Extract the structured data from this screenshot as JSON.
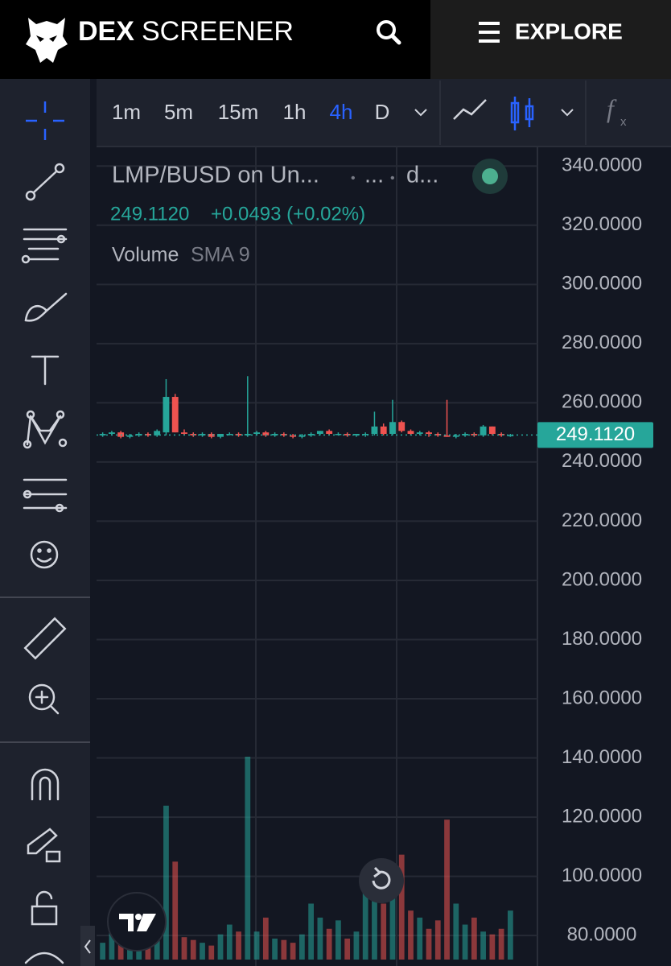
{
  "header": {
    "brand_bold": "DEX",
    "brand_light": "SCREENER",
    "explore": "EXPLORE"
  },
  "toolbar": {
    "intervals": [
      "1m",
      "5m",
      "15m",
      "1h",
      "4h",
      "D"
    ],
    "active_interval": 4
  },
  "legend": {
    "symbol": "LMP/BUSD on Un...",
    "exchange": "...",
    "source": "d...",
    "price": "249.1120",
    "change": "+0.0493 (+0.02%)",
    "indicator": "Volume",
    "indicator_args": "SMA 9"
  },
  "chart_data": {
    "type": "candlestick",
    "up_color": "#26a69a",
    "down_color": "#ef5350",
    "open": [
      249,
      249.5,
      250,
      248.5,
      249,
      249.5,
      249,
      250,
      262,
      250,
      249.5,
      249,
      249.5,
      248.5,
      249.5,
      249.5,
      249,
      249.5,
      250,
      249,
      249.5,
      249,
      248.5,
      249,
      249.5,
      250.5,
      249.5,
      249.5,
      249,
      249.5,
      249.5,
      252,
      249.5,
      253.5,
      250.5,
      249.5,
      250,
      249.5,
      249,
      248.5,
      249,
      249.5,
      249,
      252,
      249.5,
      249
    ],
    "high": [
      250,
      250.5,
      250.5,
      249.5,
      250,
      250,
      251,
      268,
      263,
      251,
      250,
      250,
      250,
      249.5,
      250,
      250,
      269,
      250.5,
      250.5,
      250,
      250,
      249.5,
      249.5,
      250,
      250.5,
      251,
      250,
      250,
      249.5,
      250,
      257,
      253,
      261,
      254,
      251,
      250.5,
      250.5,
      250,
      261,
      249.5,
      250,
      250,
      252.5,
      252,
      250,
      249.5
    ],
    "low": [
      248.5,
      249,
      248,
      248,
      248.5,
      248.5,
      248.5,
      249,
      250,
      249,
      248.5,
      248.5,
      248,
      248,
      249,
      248.5,
      248.5,
      249,
      248.5,
      248.5,
      248.5,
      248,
      248,
      248.5,
      249,
      249,
      249,
      248.5,
      248.5,
      248.5,
      249,
      249,
      249,
      250,
      249,
      249,
      248.5,
      248.5,
      248.5,
      248,
      248.5,
      248.5,
      248.5,
      249,
      248.5,
      248.5
    ],
    "close": [
      249.5,
      250,
      248.5,
      249,
      249.5,
      249,
      250.5,
      262,
      250,
      249.5,
      249,
      249.5,
      248.5,
      249.5,
      249.5,
      249,
      249.5,
      250,
      249,
      249.5,
      249,
      248.5,
      249,
      249.5,
      250.5,
      249.5,
      249.5,
      249,
      249.5,
      249.5,
      252,
      249.5,
      253.5,
      250.5,
      249.5,
      250,
      249.5,
      249,
      248.5,
      249,
      249.5,
      249,
      252,
      249.5,
      249,
      249.112
    ],
    "volume": [
      12,
      30,
      25,
      20,
      18,
      15,
      22,
      110,
      70,
      16,
      14,
      12,
      10,
      18,
      25,
      20,
      145,
      20,
      30,
      15,
      14,
      12,
      18,
      40,
      30,
      22,
      28,
      15,
      20,
      65,
      45,
      40,
      55,
      75,
      35,
      30,
      22,
      28,
      100,
      40,
      25,
      30,
      20,
      18,
      22,
      35
    ],
    "ylim": [
      69.7,
      346.6
    ],
    "yticks": [
      {
        "value": 340,
        "label": "340.0000"
      },
      {
        "value": 320,
        "label": "320.0000"
      },
      {
        "value": 300,
        "label": "300.0000"
      },
      {
        "value": 280,
        "label": "280.0000"
      },
      {
        "value": 260,
        "label": "260.0000"
      },
      {
        "value": 240,
        "label": "240.0000"
      },
      {
        "value": 220,
        "label": "220.0000"
      },
      {
        "value": 200,
        "label": "200.0000"
      },
      {
        "value": 180,
        "label": "180.0000"
      },
      {
        "value": 160,
        "label": "160.0000"
      },
      {
        "value": 140,
        "label": "140.0000"
      },
      {
        "value": 120,
        "label": "120.0000"
      },
      {
        "value": 100,
        "label": "100.0000"
      },
      {
        "value": 80,
        "label": "80.0000"
      }
    ],
    "last_price": {
      "value": 249.112,
      "label": "249.1120"
    },
    "grid": true
  }
}
